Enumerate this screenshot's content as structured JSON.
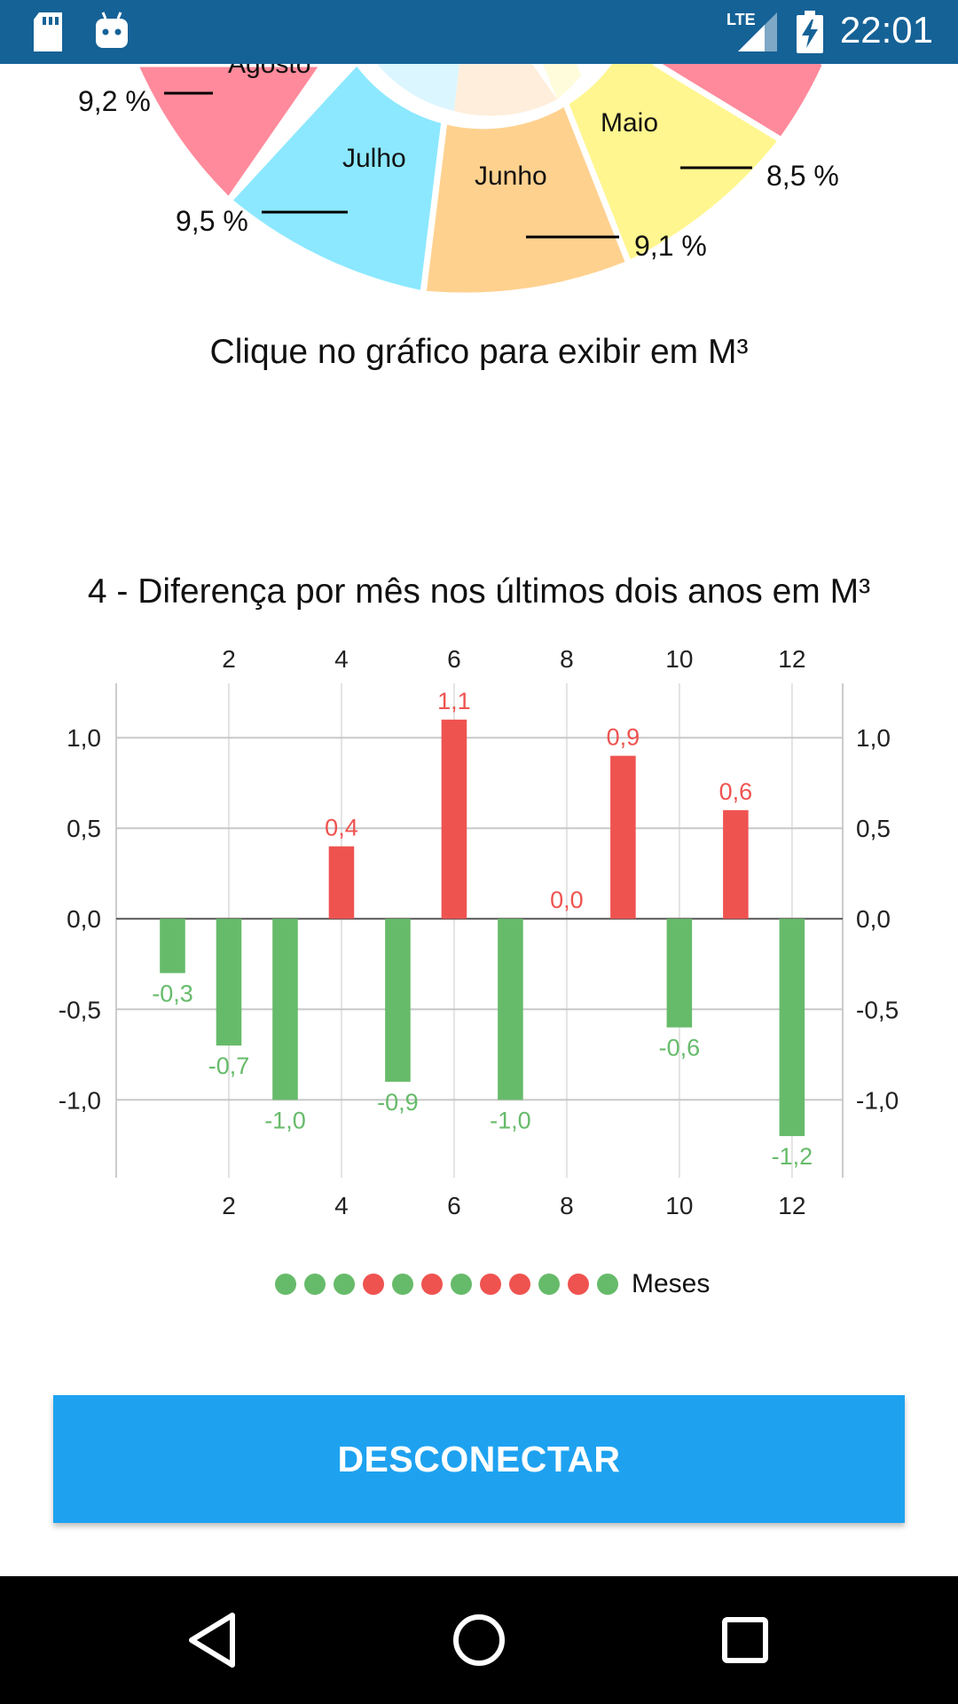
{
  "status_bar": {
    "time": "22:01",
    "network": "LTE",
    "icons": [
      "sd-card-icon",
      "android-debug-icon",
      "lte-signal-icon",
      "battery-charging-icon"
    ]
  },
  "pie": {
    "slices": [
      {
        "label": "Agosto",
        "value": "9,2 %",
        "color": "#ff8a9b"
      },
      {
        "label": "Julho",
        "value": "9,5 %",
        "color": "#8ce8ff"
      },
      {
        "label": "Junho",
        "value": "9,1 %",
        "color": "#ffd18f"
      },
      {
        "label": "Maio",
        "value": "8,5 %",
        "color": "#fff68f"
      }
    ],
    "hint": "Clique no gráfico para exibir em M³"
  },
  "chart_data": {
    "type": "bar",
    "title": "4 - Diferença por mês nos últimos dois anos em M³",
    "x": [
      1,
      2,
      3,
      4,
      5,
      6,
      7,
      8,
      9,
      10,
      11,
      12
    ],
    "values": [
      -0.3,
      -0.7,
      -1.0,
      0.4,
      -0.9,
      1.1,
      -1.0,
      0.0,
      0.9,
      -0.6,
      0.6,
      -1.2
    ],
    "value_labels": [
      "-0,3",
      "-0,7",
      "-1,0",
      "0,4",
      "-0,9",
      "1,1",
      "-1,0",
      "0,0",
      "0,9",
      "-0,6",
      "0,6",
      "-1,2"
    ],
    "x_ticks": [
      "2",
      "4",
      "6",
      "8",
      "10",
      "12"
    ],
    "x_tick_values": [
      2,
      4,
      6,
      8,
      10,
      12
    ],
    "y_ticks": [
      "1,0",
      "0,5",
      "0,0",
      "-0,5",
      "-1,0"
    ],
    "y_tick_values": [
      1.0,
      0.5,
      0.0,
      -0.5,
      -1.0
    ],
    "ylim": [
      -1.43,
      1.3
    ],
    "xlim": [
      0,
      12.9
    ],
    "positive_color": "#ef5350",
    "negative_color": "#66bb6a",
    "grid": true,
    "legend": {
      "label": "Meses",
      "placement": "bottom",
      "colors": [
        "#66bb6a",
        "#66bb6a",
        "#66bb6a",
        "#ef5350",
        "#66bb6a",
        "#ef5350",
        "#66bb6a",
        "#ef5350",
        "#ef5350",
        "#66bb6a",
        "#ef5350",
        "#66bb6a"
      ]
    }
  },
  "actions": {
    "disconnect_label": "DESCONECTAR"
  },
  "nav_bar": {
    "buttons": [
      "back-icon",
      "home-icon",
      "recents-icon"
    ]
  }
}
